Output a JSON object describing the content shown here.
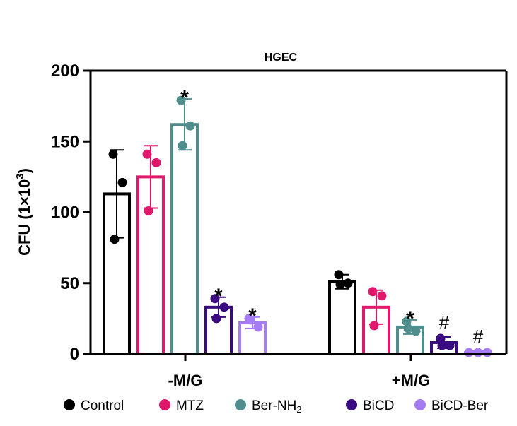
{
  "chart_data": {
    "type": "bar",
    "title": "HGEC",
    "ylabel_main": "CFU (1×10",
    "ylabel_sup": "3",
    "ylabel_close": ")",
    "ylim": [
      0,
      200
    ],
    "yticks": [
      0,
      50,
      100,
      150,
      200
    ],
    "ytick_labels": [
      "0",
      "50",
      "100",
      "150",
      "200"
    ],
    "groups": [
      "-M/G",
      "+M/G"
    ],
    "series": [
      {
        "name": "Control",
        "legend_main": "Control",
        "legend_sub": "",
        "color": "#000000",
        "values": [
          113,
          51
        ],
        "errors": [
          31,
          5
        ],
        "points": [
          [
            141,
            121,
            81
          ],
          [
            56,
            50,
            49
          ]
        ],
        "marks": [
          "",
          ""
        ]
      },
      {
        "name": "MTZ",
        "legend_main": "MTZ",
        "legend_sub": "",
        "color": "#e0186c",
        "values": [
          125,
          33
        ],
        "errors": [
          22,
          12
        ],
        "points": [
          [
            141,
            135,
            101
          ],
          [
            44,
            41,
            20
          ]
        ],
        "marks": [
          "",
          ""
        ]
      },
      {
        "name": "Ber-NH2",
        "legend_main": "Ber-NH",
        "legend_sub": "2",
        "color": "#4f8e8c",
        "values": [
          162,
          19
        ],
        "errors": [
          18,
          5
        ],
        "points": [
          [
            179,
            161,
            147
          ],
          [
            23,
            16,
            18
          ]
        ],
        "marks": [
          "*",
          "*"
        ]
      },
      {
        "name": "BiCD",
        "legend_main": "BiCD",
        "legend_sub": "",
        "color": "#3a0a80",
        "values": [
          33,
          8
        ],
        "errors": [
          7,
          4
        ],
        "points": [
          [
            39,
            33,
            25
          ],
          [
            11,
            6,
            6
          ]
        ],
        "marks": [
          "*",
          "#"
        ]
      },
      {
        "name": "BiCD-Ber",
        "legend_main": "BiCD-Ber",
        "legend_sub": "",
        "color": "#a67cf5",
        "values": [
          22,
          1
        ],
        "errors": [
          4,
          1
        ],
        "points": [
          [
            25,
            19,
            24
          ],
          [
            1,
            1,
            1
          ]
        ],
        "marks": [
          "*",
          "#"
        ]
      }
    ]
  }
}
